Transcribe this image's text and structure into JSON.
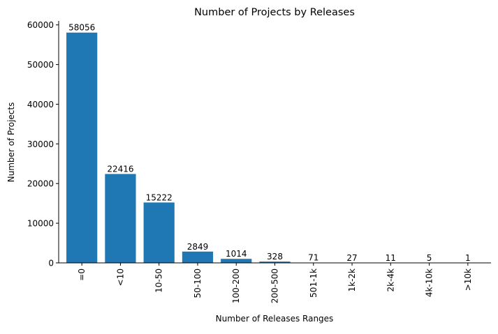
{
  "chart_data": {
    "type": "bar",
    "title": "Number of Projects by Releases",
    "xlabel": "Number of Releases Ranges",
    "ylabel": "Number of Projects",
    "categories": [
      "=0",
      "<10",
      "10-50",
      "50-100",
      "100-200",
      "200-500",
      "501-1k",
      "1k-2k",
      "2k-4k",
      "4k-10k",
      ">10k"
    ],
    "values": [
      58056,
      22416,
      15222,
      2849,
      1014,
      328,
      71,
      27,
      11,
      5,
      1
    ],
    "data_labels": [
      "58056",
      "22416",
      "15222",
      "2849",
      "1014",
      "328",
      "71",
      "27",
      "11",
      "5",
      "1"
    ],
    "ylim": [
      0,
      61000
    ],
    "yticks": [
      0,
      10000,
      20000,
      30000,
      40000,
      50000,
      60000
    ],
    "ytick_labels": [
      "0",
      "10000",
      "20000",
      "30000",
      "40000",
      "50000",
      "60000"
    ],
    "bar_color": "#1f77b4",
    "grid": false,
    "legend": "none"
  }
}
